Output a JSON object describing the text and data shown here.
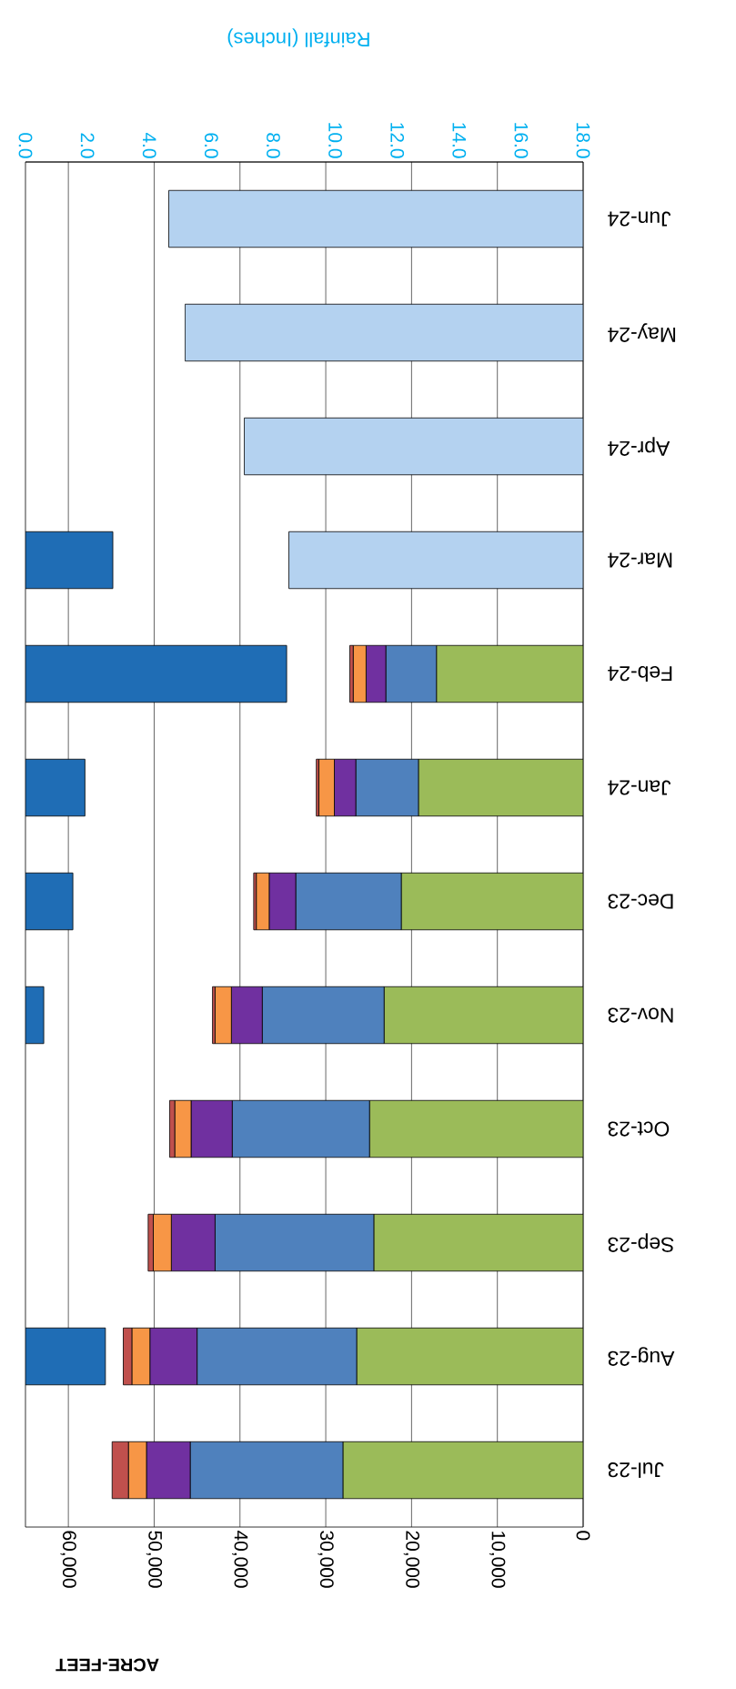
{
  "chart_data": {
    "type": "bar",
    "orientation": "horizontal",
    "stacked": true,
    "xlabel": "ACRE-FEET",
    "x2label": "Rainfall (Inches)",
    "categories": [
      "Jun-24",
      "May-24",
      "Apr-24",
      "Mar-24",
      "Feb-24",
      "Jan-24",
      "Dec-23",
      "Nov-23",
      "Oct-23",
      "Sep-23",
      "Aug-23",
      "Jul-23"
    ],
    "series": [
      {
        "color": "#1f6db5",
        "axis": "x2",
        "values": [
          null,
          null,
          null,
          2.82,
          8.43,
          1.92,
          1.53,
          0.59,
          null,
          null,
          2.58,
          null
        ]
      },
      {
        "color": "#9bbb59",
        "values": [
          null,
          null,
          null,
          null,
          17100,
          19200,
          21200,
          23200,
          24900,
          24400,
          26400,
          28000
        ]
      },
      {
        "color": "#4f81bd",
        "values": [
          null,
          null,
          null,
          null,
          5900,
          7300,
          12300,
          14200,
          16000,
          18500,
          18600,
          17800
        ]
      },
      {
        "color": "#7030a0",
        "values": [
          null,
          null,
          null,
          null,
          2300,
          2500,
          3100,
          3600,
          4800,
          5100,
          5500,
          5100
        ]
      },
      {
        "color": "#f79646",
        "values": [
          null,
          null,
          null,
          null,
          1500,
          1800,
          1500,
          1900,
          1900,
          2100,
          2100,
          2100
        ]
      },
      {
        "color": "#c0504d",
        "values": [
          null,
          null,
          null,
          null,
          400,
          300,
          300,
          300,
          600,
          600,
          1000,
          1900
        ]
      },
      {
        "color": "#b4d2f0",
        "values": [
          48300,
          46400,
          39500,
          34300,
          null,
          null,
          null,
          null,
          null,
          null,
          null,
          null
        ]
      }
    ],
    "xlim": [
      65000,
      0
    ],
    "xticks": [
      {
        "value": 0,
        "label": "0"
      },
      {
        "value": 10000,
        "label": "10,000"
      },
      {
        "value": 20000,
        "label": "20,000"
      },
      {
        "value": 30000,
        "label": "30,000"
      },
      {
        "value": 40000,
        "label": "40,000"
      },
      {
        "value": 50000,
        "label": "50,000"
      },
      {
        "value": 60000,
        "label": "60,000"
      }
    ],
    "x2lim": [
      0,
      18
    ],
    "x2ticks": [
      {
        "value": 0,
        "label": "0.0"
      },
      {
        "value": 2,
        "label": "2.0"
      },
      {
        "value": 4,
        "label": "4.0"
      },
      {
        "value": 6,
        "label": "6.0"
      },
      {
        "value": 8,
        "label": "8.0"
      },
      {
        "value": 10,
        "label": "10.0"
      },
      {
        "value": 12,
        "label": "12.0"
      },
      {
        "value": 14,
        "label": "14.0"
      },
      {
        "value": 16,
        "label": "16.0"
      },
      {
        "value": 18,
        "label": "18.0"
      }
    ],
    "grid": "x"
  }
}
